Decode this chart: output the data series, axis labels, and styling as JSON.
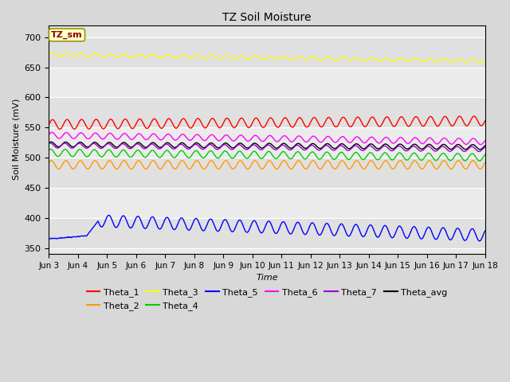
{
  "title": "TZ Soil Moisture",
  "xlabel": "Time",
  "ylabel": "Soil Moisture (mV)",
  "background_color": "#d8d8d8",
  "plot_bg_color": "#e8e8e8",
  "ylim": [
    340,
    720
  ],
  "yticks": [
    350,
    400,
    450,
    500,
    550,
    600,
    650,
    700
  ],
  "num_points": 720,
  "series": {
    "Theta_1": {
      "color": "#ff0000",
      "base": 555,
      "trend": 0.4,
      "amp": 8,
      "freq": 2.0,
      "phase": 0.0
    },
    "Theta_2": {
      "color": "#ff9900",
      "base": 488,
      "trend": 0.0,
      "amp": 7,
      "freq": 2.0,
      "phase": 0.5
    },
    "Theta_3": {
      "color": "#ffff00",
      "base": 671,
      "trend": -0.7,
      "amp": 3,
      "freq": 2.0,
      "phase": 0.2
    },
    "Theta_4": {
      "color": "#00cc00",
      "base": 508,
      "trend": -0.5,
      "amp": 6,
      "freq": 2.0,
      "phase": 0.8
    },
    "Theta_6": {
      "color": "#ff00ff",
      "base": 537,
      "trend": -0.7,
      "amp": 5,
      "freq": 2.0,
      "phase": 0.3
    },
    "Theta_7": {
      "color": "#9900cc",
      "base": 520,
      "trend": -0.4,
      "amp": 4,
      "freq": 2.0,
      "phase": 1.0
    },
    "Theta_avg": {
      "color": "#000000",
      "base": 522,
      "trend": -0.3,
      "amp": 4,
      "freq": 2.0,
      "phase": 0.6
    }
  },
  "legend_label": "TZ_sm",
  "xtick_labels": [
    "Jun 3",
    "Jun 4",
    "Jun 5",
    "Jun 6",
    "Jun 7",
    "Jun 8",
    "Jun 9",
    "Jun 10",
    "Jun 11",
    "Jun 12",
    "Jun 13",
    "Jun 14",
    "Jun 15",
    "Jun 16",
    "Jun 17",
    "Jun 18"
  ]
}
